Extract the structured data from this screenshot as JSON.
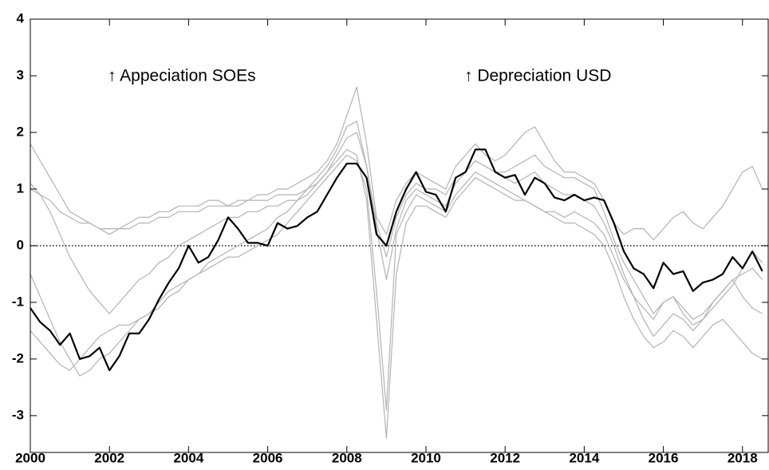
{
  "chart_data": {
    "type": "line",
    "x": [
      2000,
      2000.25,
      2000.5,
      2000.75,
      2001,
      2001.25,
      2001.5,
      2001.75,
      2002,
      2002.25,
      2002.5,
      2002.75,
      2003,
      2003.25,
      2003.5,
      2003.75,
      2004,
      2004.25,
      2004.5,
      2004.75,
      2005,
      2005.25,
      2005.5,
      2005.75,
      2006,
      2006.25,
      2006.5,
      2006.75,
      2007,
      2007.25,
      2007.5,
      2007.75,
      2008,
      2008.25,
      2008.5,
      2008.75,
      2009,
      2009.25,
      2009.5,
      2009.75,
      2010,
      2010.25,
      2010.5,
      2010.75,
      2011,
      2011.25,
      2011.5,
      2011.75,
      2012,
      2012.25,
      2012.5,
      2012.75,
      2013,
      2013.25,
      2013.5,
      2013.75,
      2014,
      2014.25,
      2014.5,
      2014.75,
      2015,
      2015.25,
      2015.5,
      2015.75,
      2016,
      2016.25,
      2016.5,
      2016.75,
      2017,
      2017.25,
      2017.5,
      2017.75,
      2018,
      2018.25,
      2018.5
    ],
    "series": [
      {
        "color": "#b3b3b3",
        "values": [
          1.8,
          1.5,
          1.2,
          0.9,
          0.6,
          0.5,
          0.4,
          0.3,
          0.2,
          0.3,
          0.4,
          0.5,
          0.5,
          0.6,
          0.6,
          0.7,
          0.7,
          0.7,
          0.8,
          0.8,
          0.7,
          0.8,
          0.8,
          0.9,
          0.9,
          1.0,
          1.0,
          1.1,
          1.2,
          1.3,
          1.5,
          1.8,
          2.3,
          2.8,
          1.8,
          0.5,
          0.2,
          0.8,
          1.1,
          1.3,
          1.2,
          1.1,
          1.0,
          1.4,
          1.6,
          1.8,
          1.6,
          1.5,
          1.6,
          1.8,
          2.0,
          2.1,
          1.8,
          1.5,
          1.3,
          1.3,
          1.2,
          1.1,
          0.8,
          0.4,
          0.2,
          0.3,
          0.3,
          0.1,
          0.3,
          0.5,
          0.6,
          0.4,
          0.3,
          0.5,
          0.7,
          1.0,
          1.3,
          1.4,
          1.0
        ]
      },
      {
        "color": "#b3b3b3",
        "values": [
          -0.5,
          -0.9,
          -1.3,
          -1.7,
          -2.0,
          -2.3,
          -2.2,
          -2.0,
          -1.9,
          -1.7,
          -1.5,
          -1.3,
          -1.2,
          -1.0,
          -0.8,
          -0.7,
          -0.6,
          -0.5,
          -0.4,
          -0.3,
          -0.2,
          -0.2,
          -0.1,
          0.0,
          0.1,
          0.2,
          0.4,
          0.6,
          0.8,
          1.0,
          1.2,
          1.4,
          1.6,
          1.5,
          1.0,
          -0.8,
          -2.9,
          0.2,
          0.6,
          0.9,
          0.8,
          0.7,
          0.6,
          0.9,
          1.1,
          1.3,
          1.2,
          1.1,
          1.0,
          0.9,
          0.8,
          0.7,
          0.6,
          0.5,
          0.4,
          0.4,
          0.3,
          0.2,
          0.0,
          -0.4,
          -0.9,
          -1.3,
          -1.6,
          -1.8,
          -1.7,
          -1.5,
          -1.6,
          -1.8,
          -1.6,
          -1.4,
          -1.3,
          -1.5,
          -1.7,
          -1.9,
          -2.0
        ]
      },
      {
        "color": "#b3b3b3",
        "values": [
          1.0,
          0.9,
          0.6,
          0.2,
          -0.2,
          -0.5,
          -0.8,
          -1.0,
          -1.2,
          -1.0,
          -0.8,
          -0.6,
          -0.5,
          -0.3,
          -0.2,
          0.0,
          0.1,
          0.2,
          0.3,
          0.4,
          0.5,
          0.5,
          0.6,
          0.6,
          0.7,
          0.7,
          0.8,
          0.8,
          0.9,
          1.1,
          1.3,
          1.5,
          1.7,
          1.6,
          0.8,
          -1.3,
          -3.4,
          -0.5,
          0.4,
          0.7,
          0.7,
          0.6,
          0.5,
          0.8,
          1.0,
          1.2,
          1.1,
          1.0,
          0.9,
          0.8,
          0.8,
          0.7,
          0.6,
          0.6,
          0.5,
          0.6,
          0.5,
          0.4,
          0.2,
          -0.2,
          -0.6,
          -0.9,
          -1.1,
          -1.3,
          -1.0,
          -0.9,
          -1.1,
          -1.3,
          -1.2,
          -1.0,
          -0.8,
          -0.6,
          -0.9,
          -1.1,
          -1.2
        ]
      },
      {
        "color": "#b3b3b3",
        "values": [
          1.1,
          0.9,
          0.8,
          0.6,
          0.5,
          0.4,
          0.4,
          0.3,
          0.3,
          0.3,
          0.3,
          0.4,
          0.4,
          0.5,
          0.5,
          0.6,
          0.6,
          0.6,
          0.7,
          0.7,
          0.7,
          0.7,
          0.8,
          0.8,
          0.8,
          0.9,
          0.9,
          0.9,
          1.0,
          1.1,
          1.3,
          1.6,
          1.9,
          2.0,
          1.4,
          0.4,
          -0.2,
          0.5,
          0.9,
          1.1,
          1.0,
          1.0,
          0.9,
          1.2,
          1.3,
          1.5,
          1.4,
          1.3,
          1.3,
          1.4,
          1.5,
          1.6,
          1.4,
          1.3,
          1.2,
          1.2,
          1.1,
          1.0,
          0.6,
          0.1,
          -0.3,
          -0.6,
          -0.9,
          -1.2,
          -1.0,
          -0.9,
          -1.2,
          -1.4,
          -1.3,
          -1.1,
          -0.9,
          -0.7,
          -0.4,
          -0.1,
          -0.3
        ]
      },
      {
        "color": "#b3b3b3",
        "values": [
          -1.5,
          -1.7,
          -1.9,
          -2.1,
          -2.2,
          -2.0,
          -1.8,
          -1.6,
          -1.5,
          -1.4,
          -1.4,
          -1.3,
          -1.2,
          -1.1,
          -0.9,
          -0.8,
          -0.6,
          -0.5,
          -0.3,
          -0.2,
          -0.1,
          0.0,
          0.1,
          0.2,
          0.3,
          0.5,
          0.6,
          0.8,
          1.0,
          1.2,
          1.4,
          1.7,
          2.1,
          2.2,
          1.4,
          0.3,
          -0.6,
          0.3,
          0.8,
          1.0,
          0.9,
          0.8,
          0.7,
          1.1,
          1.3,
          1.5,
          1.4,
          1.3,
          1.2,
          1.1,
          1.2,
          1.3,
          1.1,
          1.0,
          0.9,
          0.9,
          0.8,
          0.7,
          0.4,
          0.0,
          -0.5,
          -0.9,
          -1.3,
          -1.6,
          -1.4,
          -1.2,
          -1.3,
          -1.5,
          -1.3,
          -1.0,
          -0.8,
          -0.6,
          -0.5,
          -0.4,
          -0.6
        ]
      },
      {
        "color": "#000000",
        "values": [
          -1.1,
          -1.35,
          -1.5,
          -1.75,
          -1.55,
          -2.0,
          -1.95,
          -1.8,
          -2.2,
          -1.95,
          -1.55,
          -1.55,
          -1.3,
          -0.95,
          -0.65,
          -0.4,
          0.0,
          -0.3,
          -0.2,
          0.1,
          0.5,
          0.3,
          0.05,
          0.05,
          0.0,
          0.4,
          0.3,
          0.35,
          0.5,
          0.6,
          0.9,
          1.2,
          1.45,
          1.45,
          1.2,
          0.2,
          0.0,
          0.6,
          1.0,
          1.3,
          0.95,
          0.9,
          0.6,
          1.2,
          1.3,
          1.7,
          1.7,
          1.3,
          1.2,
          1.25,
          0.9,
          1.2,
          1.1,
          0.85,
          0.8,
          0.9,
          0.8,
          0.85,
          0.8,
          0.4,
          -0.1,
          -0.4,
          -0.5,
          -0.75,
          -0.3,
          -0.5,
          -0.45,
          -0.8,
          -0.65,
          -0.6,
          -0.5,
          -0.2,
          -0.4,
          -0.1,
          -0.45
        ]
      }
    ],
    "xlim": [
      2000,
      2018.65
    ],
    "xticks": [
      2000,
      2002,
      2004,
      2006,
      2008,
      2010,
      2012,
      2014,
      2016,
      2018
    ],
    "ylim": [
      -3.65,
      4
    ],
    "yticks": [
      -3,
      -2,
      -1,
      0,
      1,
      2,
      3,
      4
    ],
    "reference_line": 0,
    "reference_style": "dotted",
    "annotations": [
      "↑ Appeciation SOEs",
      "↑ Depreciation USD"
    ]
  }
}
